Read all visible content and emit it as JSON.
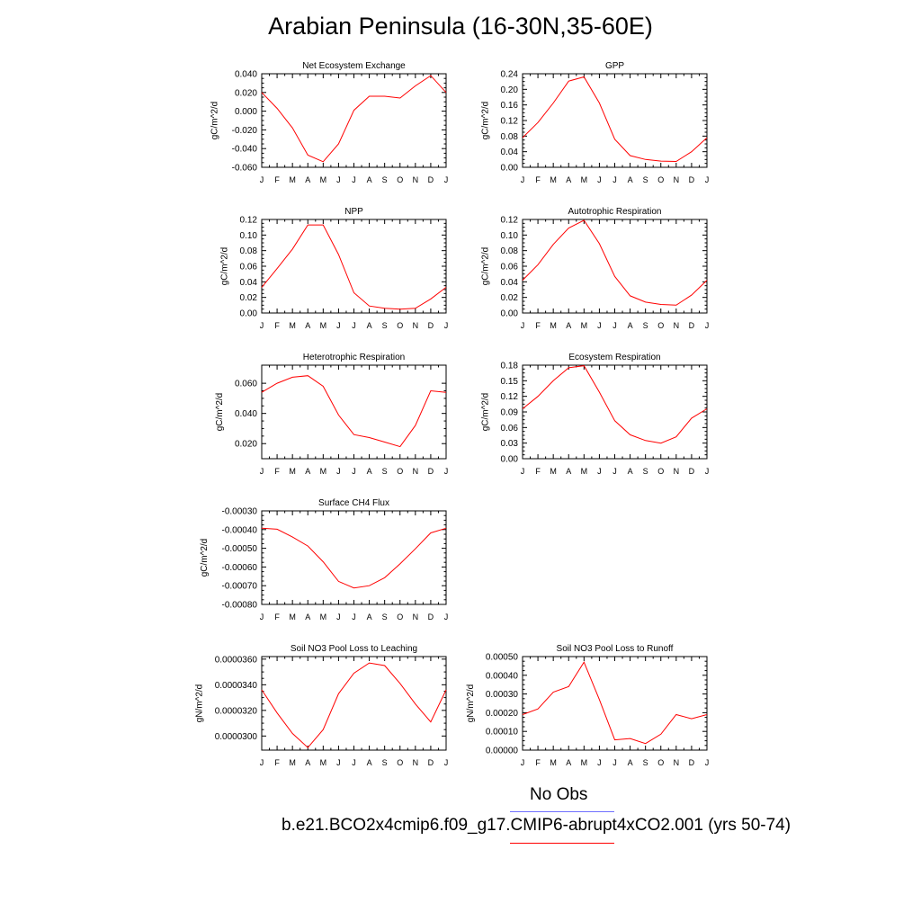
{
  "title": "Arabian Peninsula (16-30N,35-60E)",
  "colors": {
    "model_line": "#ff0000",
    "obs_line": "#6f6fff",
    "axis": "#000000"
  },
  "legend": [
    {
      "label": "No Obs",
      "color": "#6f6fff"
    },
    {
      "label": "b.e21.BCO2x4cmip6.f09_g17.CMIP6-abrupt4xCO2.001 (yrs 50-74)",
      "color": "#ff0000"
    }
  ],
  "chart_data": [
    {
      "type": "line",
      "title": "Net Ecosystem Exchange",
      "ylabel": "gC/m^2/d",
      "categories": [
        "J",
        "F",
        "M",
        "A",
        "M",
        "J",
        "J",
        "A",
        "S",
        "O",
        "N",
        "D",
        "J"
      ],
      "ylim": [
        -0.06,
        0.04
      ],
      "yticks": [
        -0.06,
        -0.04,
        -0.02,
        0.0,
        0.02,
        0.04
      ],
      "yticklabels": [
        "-0.060",
        "-0.040",
        "-0.020",
        "0.000",
        "0.020",
        "0.040"
      ],
      "series": [
        {
          "values": [
            0.02,
            0.003,
            -0.018,
            -0.047,
            -0.054,
            -0.035,
            0.001,
            0.016,
            0.016,
            0.014,
            0.027,
            0.038,
            0.02
          ]
        }
      ]
    },
    {
      "type": "line",
      "title": "GPP",
      "ylabel": "gC/m^2/d",
      "categories": [
        "J",
        "F",
        "M",
        "A",
        "M",
        "J",
        "J",
        "A",
        "S",
        "O",
        "N",
        "D",
        "J"
      ],
      "ylim": [
        0.0,
        0.24
      ],
      "yticks": [
        0.0,
        0.04,
        0.08,
        0.12,
        0.16,
        0.2,
        0.24
      ],
      "yticklabels": [
        "0.00",
        "0.04",
        "0.08",
        "0.12",
        "0.16",
        "0.20",
        "0.24"
      ],
      "series": [
        {
          "values": [
            0.076,
            0.115,
            0.165,
            0.221,
            0.232,
            0.165,
            0.072,
            0.03,
            0.02,
            0.016,
            0.015,
            0.04,
            0.076
          ]
        }
      ]
    },
    {
      "type": "line",
      "title": "NPP",
      "ylabel": "gC/m^2/d",
      "categories": [
        "J",
        "F",
        "M",
        "A",
        "M",
        "J",
        "J",
        "A",
        "S",
        "O",
        "N",
        "D",
        "J"
      ],
      "ylim": [
        0.0,
        0.12
      ],
      "yticks": [
        0.0,
        0.02,
        0.04,
        0.06,
        0.08,
        0.1,
        0.12
      ],
      "yticklabels": [
        "0.00",
        "0.02",
        "0.04",
        "0.06",
        "0.08",
        "0.10",
        "0.12"
      ],
      "series": [
        {
          "values": [
            0.033,
            0.057,
            0.082,
            0.113,
            0.113,
            0.075,
            0.026,
            0.009,
            0.006,
            0.005,
            0.006,
            0.018,
            0.033
          ]
        }
      ]
    },
    {
      "type": "line",
      "title": "Autotrophic Respiration",
      "ylabel": "gC/m^2/d",
      "categories": [
        "J",
        "F",
        "M",
        "A",
        "M",
        "J",
        "J",
        "A",
        "S",
        "O",
        "N",
        "D",
        "J"
      ],
      "ylim": [
        0.0,
        0.12
      ],
      "yticks": [
        0.0,
        0.02,
        0.04,
        0.06,
        0.08,
        0.1,
        0.12
      ],
      "yticklabels": [
        "0.00",
        "0.02",
        "0.04",
        "0.06",
        "0.08",
        "0.10",
        "0.12"
      ],
      "series": [
        {
          "values": [
            0.042,
            0.062,
            0.088,
            0.109,
            0.119,
            0.089,
            0.047,
            0.022,
            0.014,
            0.011,
            0.01,
            0.023,
            0.042
          ]
        }
      ]
    },
    {
      "type": "line",
      "title": "Heterotrophic Respiration",
      "ylabel": "gC/m^2/d",
      "categories": [
        "J",
        "F",
        "M",
        "A",
        "M",
        "J",
        "J",
        "A",
        "S",
        "O",
        "N",
        "D",
        "J"
      ],
      "ylim": [
        0.01,
        0.072
      ],
      "yticks": [
        0.02,
        0.04,
        0.06
      ],
      "yticklabels": [
        "0.020",
        "0.040",
        "0.060"
      ],
      "series": [
        {
          "values": [
            0.054,
            0.06,
            0.064,
            0.065,
            0.058,
            0.039,
            0.026,
            0.024,
            0.021,
            0.018,
            0.032,
            0.055,
            0.054
          ]
        }
      ]
    },
    {
      "type": "line",
      "title": "Ecosystem Respiration",
      "ylabel": "gC/m^2/d",
      "categories": [
        "J",
        "F",
        "M",
        "A",
        "M",
        "J",
        "J",
        "A",
        "S",
        "O",
        "N",
        "D",
        "J"
      ],
      "ylim": [
        0.0,
        0.18
      ],
      "yticks": [
        0.0,
        0.03,
        0.06,
        0.09,
        0.12,
        0.15,
        0.18
      ],
      "yticklabels": [
        "0.00",
        "0.03",
        "0.06",
        "0.09",
        "0.12",
        "0.15",
        "0.18"
      ],
      "series": [
        {
          "values": [
            0.096,
            0.12,
            0.15,
            0.175,
            0.179,
            0.128,
            0.073,
            0.046,
            0.035,
            0.03,
            0.042,
            0.078,
            0.096
          ]
        }
      ]
    },
    {
      "type": "line",
      "title": "Surface CH4 Flux",
      "ylabel": "gC/m^2/d",
      "categories": [
        "J",
        "F",
        "M",
        "A",
        "M",
        "J",
        "J",
        "A",
        "S",
        "O",
        "N",
        "D",
        "J"
      ],
      "ylim": [
        -0.0008,
        -0.0003
      ],
      "yticks": [
        -0.0008,
        -0.0007,
        -0.0006,
        -0.0005,
        -0.0004,
        -0.0003
      ],
      "yticklabels": [
        "-0.00080",
        "-0.00070",
        "-0.00060",
        "-0.00050",
        "-0.00040",
        "-0.00030"
      ],
      "series": [
        {
          "values": [
            -0.000393,
            -0.000398,
            -0.00044,
            -0.000488,
            -0.000572,
            -0.000677,
            -0.000712,
            -0.0007,
            -0.000657,
            -0.000583,
            -0.000503,
            -0.000418,
            -0.000393
          ]
        }
      ]
    },
    {
      "type": "line",
      "title": "Soil NO3 Pool Loss to Leaching",
      "ylabel": "gN/m^2/d",
      "categories": [
        "J",
        "F",
        "M",
        "A",
        "M",
        "J",
        "J",
        "A",
        "S",
        "O",
        "N",
        "D",
        "J"
      ],
      "ylim": [
        2.89e-05,
        3.62e-05
      ],
      "yticks": [
        3e-05,
        3.2e-05,
        3.4e-05,
        3.6e-05
      ],
      "yticklabels": [
        "0.0000300",
        "0.0000320",
        "0.0000340",
        "0.0000360"
      ],
      "series": [
        {
          "values": [
            3.36e-05,
            3.18e-05,
            3.02e-05,
            2.91e-05,
            3.05e-05,
            3.33e-05,
            3.49e-05,
            3.57e-05,
            3.55e-05,
            3.41e-05,
            3.25e-05,
            3.11e-05,
            3.36e-05
          ]
        }
      ]
    },
    {
      "type": "line",
      "title": "Soil NO3 Pool Loss to Runoff",
      "ylabel": "gN/m^2/d",
      "categories": [
        "J",
        "F",
        "M",
        "A",
        "M",
        "J",
        "J",
        "A",
        "S",
        "O",
        "N",
        "D",
        "J"
      ],
      "ylim": [
        0.0,
        0.0005
      ],
      "yticks": [
        0.0,
        0.0001,
        0.0002,
        0.0003,
        0.0004,
        0.0005
      ],
      "yticklabels": [
        "0.00000",
        "0.00010",
        "0.00020",
        "0.00030",
        "0.00040",
        "0.00050"
      ],
      "series": [
        {
          "values": [
            0.00019,
            0.00022,
            0.00031,
            0.00034,
            0.00047,
            0.00027,
            5.5e-05,
            6.2e-05,
            3.5e-05,
            8.5e-05,
            0.00019,
            0.000168,
            0.00019
          ]
        }
      ]
    }
  ]
}
